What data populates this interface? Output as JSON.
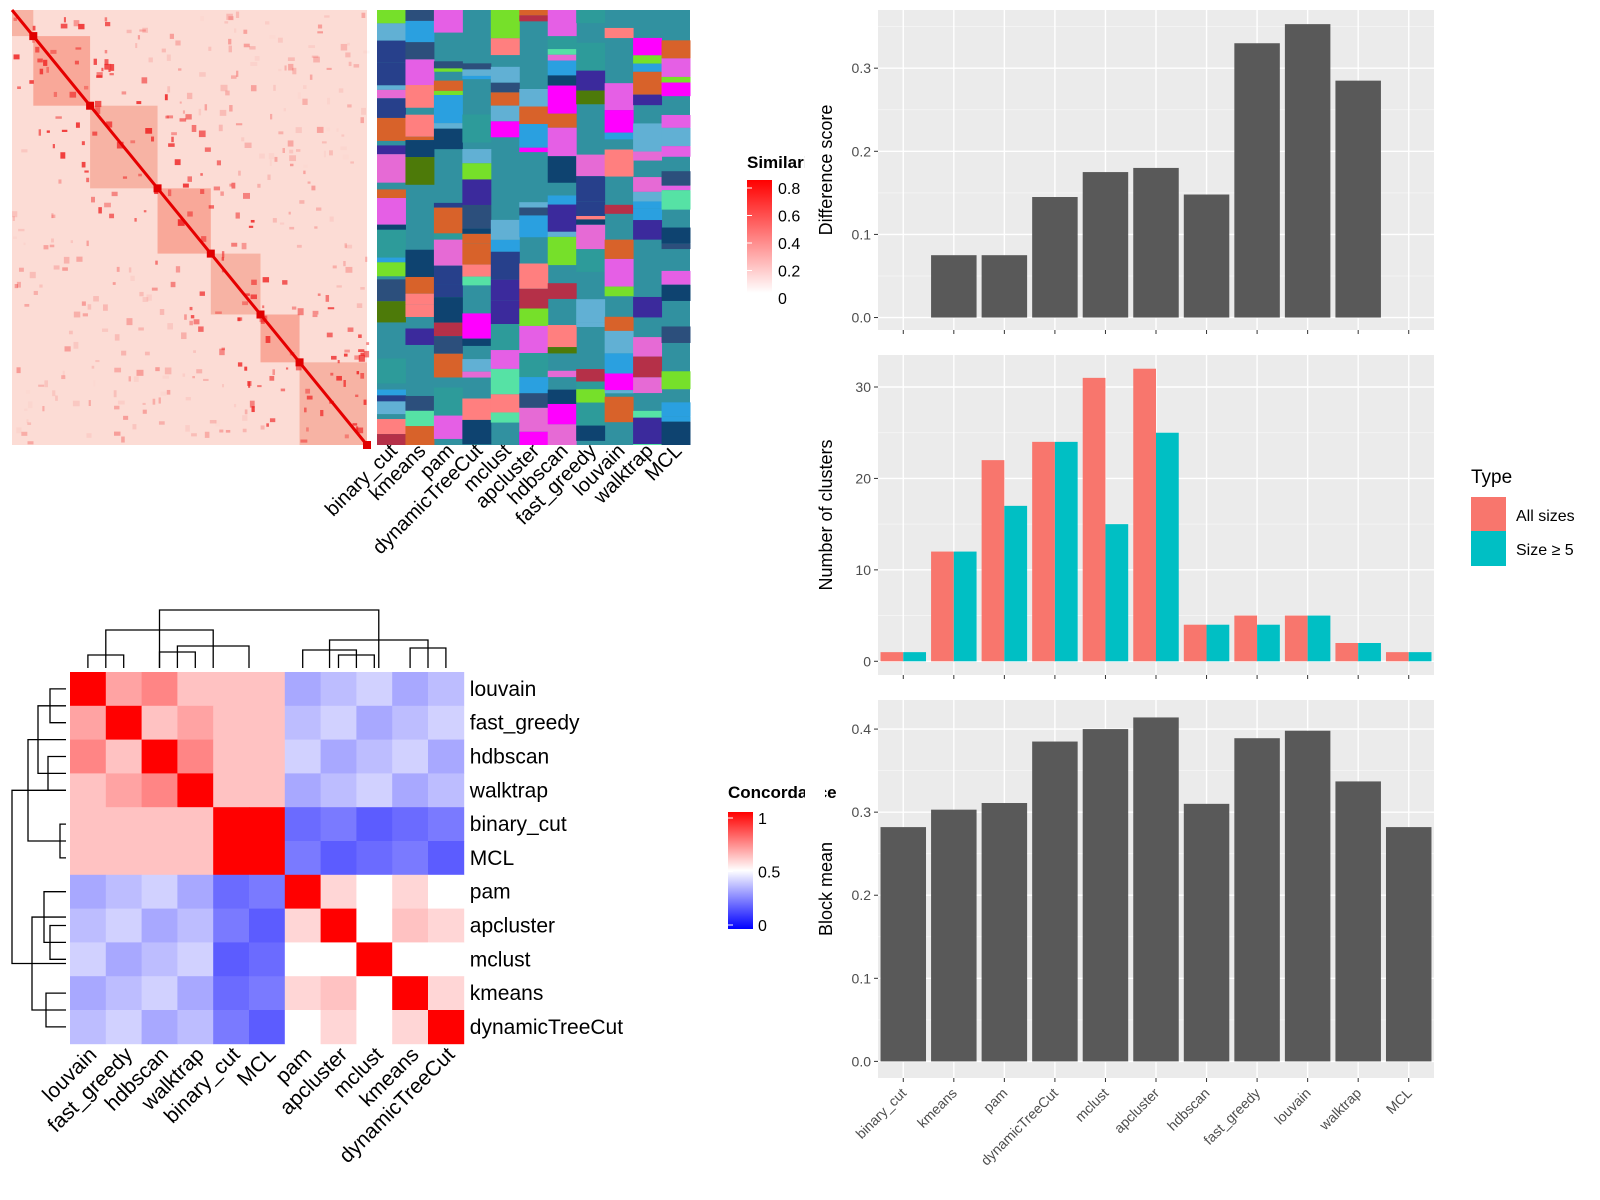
{
  "similarity_heatmap": {
    "legend_title": "Similarity",
    "legend_ticks": [
      "0.8",
      "0.6",
      "0.4",
      "0.2",
      "0"
    ],
    "colors": {
      "low": "#ffffff",
      "high": "#ff0000"
    }
  },
  "annotation": {
    "methods": [
      "binary_cut",
      "kmeans",
      "pam",
      "dynamicTreeCut",
      "mclust",
      "apcluster",
      "hdbscan",
      "fast_greedy",
      "louvain",
      "walktrap",
      "MCL"
    ],
    "background_color": "#3191a0",
    "palette": [
      "#e55fe5",
      "#2c4f7c",
      "#76e02a",
      "#4d7a09",
      "#ff00ff",
      "#2d9b9a",
      "#56e2a5",
      "#0e4370",
      "#3b2a9c",
      "#b53048",
      "#e66ad5",
      "#27408b",
      "#d8622a",
      "#2aa0e0",
      "#ff7f7f",
      "#61b0d4"
    ]
  },
  "concordance_heatmap": {
    "legend_title": "Concordance",
    "legend_ticks": [
      "1",
      "0.5",
      "0"
    ],
    "order": [
      "louvain",
      "fast_greedy",
      "hdbscan",
      "walktrap",
      "binary_cut",
      "MCL",
      "pam",
      "apcluster",
      "mclust",
      "kmeans",
      "dynamicTreeCut"
    ],
    "colors": {
      "low": "#0000ff",
      "mid": "#ffffff",
      "high": "#ff0000"
    }
  },
  "chart_data": [
    {
      "type": "bar",
      "categories": [
        "binary_cut",
        "kmeans",
        "pam",
        "dynamicTreeCut",
        "mclust",
        "apcluster",
        "hdbscan",
        "fast_greedy",
        "louvain",
        "walktrap",
        "MCL"
      ],
      "values": [
        0,
        0.075,
        0.075,
        0.145,
        0.175,
        0.18,
        0.148,
        0.33,
        0.353,
        0.285,
        0
      ],
      "ylabel": "Difference score",
      "ylim": [
        -0.015,
        0.37
      ],
      "yticks": [
        "0.0",
        "0.1",
        "0.2",
        "0.3"
      ],
      "bar_color": "#595959",
      "grid": true
    },
    {
      "type": "bar",
      "categories": [
        "binary_cut",
        "kmeans",
        "pam",
        "dynamicTreeCut",
        "mclust",
        "apcluster",
        "hdbscan",
        "fast_greedy",
        "louvain",
        "walktrap",
        "MCL"
      ],
      "series": [
        {
          "name": "All sizes",
          "values": [
            1,
            12,
            22,
            24,
            31,
            32,
            4,
            5,
            5,
            2,
            1
          ],
          "color": "#f8766d"
        },
        {
          "name": "Size ≥ 5",
          "values": [
            1,
            12,
            17,
            24,
            15,
            25,
            4,
            4,
            5,
            2,
            1
          ],
          "color": "#00bfc4"
        }
      ],
      "ylabel": "Number of clusters",
      "ylim": [
        -1.5,
        33.5
      ],
      "yticks": [
        "0",
        "10",
        "20",
        "30"
      ],
      "legend_title": "Type",
      "legend_position": "right",
      "grid": true
    },
    {
      "type": "bar",
      "categories": [
        "binary_cut",
        "kmeans",
        "pam",
        "dynamicTreeCut",
        "mclust",
        "apcluster",
        "hdbscan",
        "fast_greedy",
        "louvain",
        "walktrap",
        "MCL"
      ],
      "values": [
        0.282,
        0.303,
        0.311,
        0.385,
        0.4,
        0.414,
        0.31,
        0.389,
        0.398,
        0.337,
        0.282
      ],
      "ylabel": "Block mean",
      "ylim": [
        -0.02,
        0.435
      ],
      "yticks": [
        "0.0",
        "0.1",
        "0.2",
        "0.3",
        "0.4"
      ],
      "bar_color": "#595959",
      "grid": true
    }
  ]
}
